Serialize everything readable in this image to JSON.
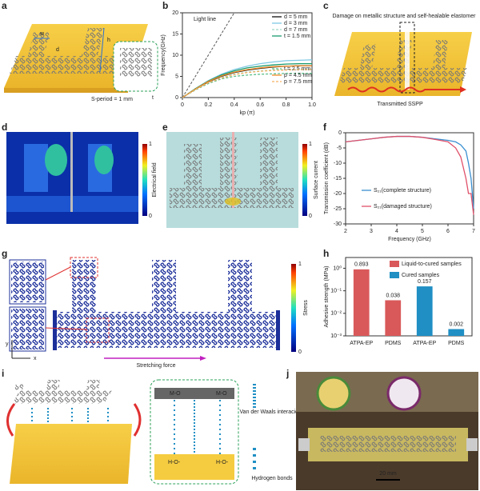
{
  "letters": [
    "a",
    "b",
    "c",
    "d",
    "e",
    "f",
    "g",
    "h",
    "i",
    "j"
  ],
  "panel_a": {
    "w": "w",
    "d": "d",
    "h": "h",
    "period": "S-period = 1 mm",
    "t": "t"
  },
  "panel_c": {
    "damage": "Damage on metallic structure and self-healable elastomer",
    "transmitted": "Transmitted SSPP"
  },
  "panel_d": {
    "top": "1",
    "bottom": "0",
    "bar_label": "Electrical field"
  },
  "panel_e": {
    "top": "1",
    "bottom": "0",
    "bar_label": "Surface current"
  },
  "panel_g": {
    "top": "1",
    "bottom": "0",
    "bar_label": "Stress",
    "force": "Stretching force",
    "axis_y": "y",
    "axis_x": "x"
  },
  "panel_i": {
    "mo1": "M-O",
    "mo2": "M-O",
    "ho1": "H-O-",
    "ho2": "H-O-",
    "vdw": "Van der Waals interacions",
    "hb": "Hydrogen bonds"
  },
  "panel_j": {
    "scale": "20 mm"
  },
  "chart_data": [
    {
      "type": "line",
      "x_label": "kp (π)",
      "y_label": "Frequency(GHz)",
      "x": [
        0,
        0.1,
        0.2,
        0.3,
        0.4,
        0.5,
        0.6,
        0.7,
        0.8,
        0.9,
        1.0
      ],
      "xlim": [
        0,
        1
      ],
      "xticks": [
        0,
        0.2,
        0.4,
        0.6,
        0.8,
        {
          "value": 1,
          "label": "1.0"
        }
      ],
      "ylim": [
        0,
        20
      ],
      "yticks": [
        0,
        5,
        10,
        15,
        20
      ],
      "light_line": {
        "label": "Light line",
        "x": [
          0,
          0.4
        ],
        "values": [
          0,
          20
        ],
        "color": "#555555"
      },
      "series": [
        {
          "name": "d = 5 mm",
          "color": "#111111",
          "dash": false,
          "values": [
            0,
            2,
            3.7,
            5,
            5.9,
            6.5,
            6.9,
            7.2,
            7.4,
            7.5,
            7.5
          ]
        },
        {
          "name": "d = 3 mm",
          "color": "#7ec8e3",
          "dash": false,
          "values": [
            0,
            2.1,
            4,
            5.5,
            6.6,
            7.4,
            8,
            8.4,
            8.7,
            8.8,
            8.9
          ]
        },
        {
          "name": "d = 7 mm",
          "color": "#9fd8c8",
          "dash": true,
          "values": [
            0,
            1.9,
            3.5,
            4.7,
            5.5,
            6,
            6.3,
            6.5,
            6.6,
            6.7,
            6.7
          ]
        },
        {
          "name": "t = 1.5 mm",
          "color": "#1a9a6c",
          "dash": false,
          "values": [
            0,
            2.1,
            3.9,
            5.3,
            6.3,
            7,
            7.4,
            7.7,
            7.9,
            8,
            8
          ]
        },
        {
          "name": "t = 2.5 mm",
          "color": "#5cbf8a",
          "dash": true,
          "values": [
            0,
            1.8,
            3.3,
            4.4,
            5,
            5.3,
            5.5,
            5.6,
            5.7,
            5.7,
            5.7
          ]
        },
        {
          "name": "p = 4.5 mm",
          "color": "#f08c28",
          "dash": false,
          "values": [
            0,
            2,
            3.8,
            5.1,
            6,
            6.6,
            7,
            7.3,
            7.4,
            7.5,
            7.5
          ]
        },
        {
          "name": "p = 7.5 mm",
          "color": "#f5b060",
          "dash": true,
          "values": [
            0,
            1.9,
            3.5,
            4.6,
            5.4,
            5.9,
            6.2,
            6.4,
            6.5,
            6.6,
            6.6
          ]
        }
      ]
    },
    {
      "type": "line",
      "x_label": "Frequency (GHz)",
      "y_label": "Transmission coefficient (dB)",
      "x": [
        2,
        2.5,
        3,
        3.5,
        4,
        4.5,
        5,
        5.5,
        6,
        6.3,
        6.5,
        6.7,
        6.8,
        6.9,
        7
      ],
      "xlim": [
        2,
        7
      ],
      "xticks": [
        2,
        3,
        4,
        5,
        6,
        7
      ],
      "ylim": [
        -30,
        0
      ],
      "yticks": [
        0,
        -5,
        -10,
        -15,
        -20,
        -25,
        -30
      ],
      "series": [
        {
          "name": "S₂₁(complete structure)",
          "color": "#3a8fd0",
          "dash": false,
          "values": [
            -3,
            -2.5,
            -2,
            -1.5,
            -1.2,
            -1.2,
            -1.5,
            -2,
            -2.5,
            -3,
            -4,
            -6,
            -10,
            -15,
            -25
          ]
        },
        {
          "name": "S₂₁(damaged structure)",
          "color": "#e0506a",
          "dash": false,
          "values": [
            -3,
            -2.5,
            -2,
            -1.5,
            -1.2,
            -1.2,
            -1.5,
            -2.2,
            -3,
            -5,
            -8,
            -15,
            -20,
            -20,
            -27
          ]
        }
      ]
    },
    {
      "type": "bar",
      "log": true,
      "y_label": "Adhesive strength (MPa)",
      "categories": [
        "ATPA-EP",
        "PDMS",
        "ATPA-EP",
        "PDMS"
      ],
      "ylim": [
        0.001,
        3
      ],
      "yticks": [
        {
          "value": 0.001,
          "label": "10⁻³"
        },
        {
          "value": 0.01,
          "label": "10⁻²"
        },
        {
          "value": 0.1,
          "label": "10⁻¹"
        },
        {
          "value": 1,
          "label": "10⁰"
        }
      ],
      "series": [
        {
          "name": "Liquid-to-cured samples",
          "color": "#d9595a",
          "values": [
            0.893,
            0.038,
            null,
            null
          ]
        },
        {
          "name": "Cured samples",
          "color": "#1f8fc4",
          "values": [
            null,
            null,
            0.157,
            0.002
          ]
        }
      ]
    }
  ]
}
